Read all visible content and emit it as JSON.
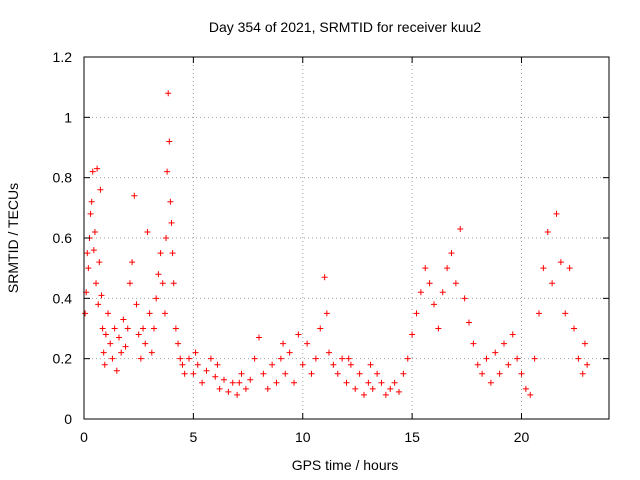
{
  "chart_data": {
    "type": "scatter",
    "title": "Day 354 of 2021, SRMTID for receiver kuu2",
    "xlabel": "GPS time / hours",
    "ylabel": "SRMTID / TECUs",
    "xlim": [
      0,
      24
    ],
    "ylim": [
      0,
      1.2
    ],
    "x_ticks": [
      0,
      5,
      10,
      15,
      20
    ],
    "x_tick_labels": [
      "0",
      "5",
      "10",
      "15",
      "20"
    ],
    "y_ticks": [
      0,
      0.2,
      0.4,
      0.6,
      0.8,
      1.0,
      1.2
    ],
    "y_tick_labels": [
      "0",
      "0.2",
      "0.4",
      "0.6",
      "0.8",
      "1",
      "1.2"
    ],
    "grid": true,
    "marker": "plus",
    "color": "#ff0000",
    "series": [
      {
        "name": "SRMTID",
        "points": [
          [
            0.05,
            0.35
          ],
          [
            0.1,
            0.42
          ],
          [
            0.15,
            0.55
          ],
          [
            0.2,
            0.5
          ],
          [
            0.25,
            0.6
          ],
          [
            0.3,
            0.68
          ],
          [
            0.35,
            0.72
          ],
          [
            0.4,
            0.82
          ],
          [
            0.45,
            0.56
          ],
          [
            0.5,
            0.62
          ],
          [
            0.55,
            0.45
          ],
          [
            0.6,
            0.83
          ],
          [
            0.65,
            0.38
          ],
          [
            0.7,
            0.52
          ],
          [
            0.75,
            0.76
          ],
          [
            0.8,
            0.41
          ],
          [
            0.85,
            0.3
          ],
          [
            0.9,
            0.22
          ],
          [
            0.95,
            0.18
          ],
          [
            1.0,
            0.28
          ],
          [
            1.1,
            0.35
          ],
          [
            1.2,
            0.25
          ],
          [
            1.3,
            0.2
          ],
          [
            1.4,
            0.3
          ],
          [
            1.5,
            0.16
          ],
          [
            1.6,
            0.27
          ],
          [
            1.7,
            0.22
          ],
          [
            1.8,
            0.33
          ],
          [
            1.9,
            0.24
          ],
          [
            2.0,
            0.3
          ],
          [
            2.1,
            0.45
          ],
          [
            2.2,
            0.52
          ],
          [
            2.3,
            0.74
          ],
          [
            2.4,
            0.38
          ],
          [
            2.5,
            0.28
          ],
          [
            2.6,
            0.2
          ],
          [
            2.7,
            0.3
          ],
          [
            2.8,
            0.25
          ],
          [
            2.9,
            0.62
          ],
          [
            3.0,
            0.35
          ],
          [
            3.1,
            0.22
          ],
          [
            3.2,
            0.3
          ],
          [
            3.3,
            0.4
          ],
          [
            3.4,
            0.48
          ],
          [
            3.5,
            0.55
          ],
          [
            3.6,
            0.45
          ],
          [
            3.7,
            0.35
          ],
          [
            3.75,
            0.6
          ],
          [
            3.8,
            0.82
          ],
          [
            3.85,
            1.08
          ],
          [
            3.9,
            0.92
          ],
          [
            3.95,
            0.72
          ],
          [
            4.0,
            0.65
          ],
          [
            4.05,
            0.55
          ],
          [
            4.1,
            0.45
          ],
          [
            4.2,
            0.3
          ],
          [
            4.3,
            0.25
          ],
          [
            4.4,
            0.2
          ],
          [
            4.5,
            0.18
          ],
          [
            4.6,
            0.15
          ],
          [
            4.8,
            0.2
          ],
          [
            5.0,
            0.15
          ],
          [
            5.2,
            0.18
          ],
          [
            5.4,
            0.12
          ],
          [
            5.6,
            0.16
          ],
          [
            5.8,
            0.2
          ],
          [
            6.0,
            0.14
          ],
          [
            6.2,
            0.1
          ],
          [
            6.4,
            0.13
          ],
          [
            6.6,
            0.09
          ],
          [
            6.8,
            0.12
          ],
          [
            7.0,
            0.08
          ],
          [
            7.2,
            0.15
          ],
          [
            7.4,
            0.1
          ],
          [
            7.6,
            0.13
          ],
          [
            7.8,
            0.2
          ],
          [
            8.0,
            0.27
          ],
          [
            8.2,
            0.15
          ],
          [
            8.4,
            0.1
          ],
          [
            8.6,
            0.18
          ],
          [
            8.8,
            0.12
          ],
          [
            9.0,
            0.2
          ],
          [
            9.2,
            0.15
          ],
          [
            9.4,
            0.22
          ],
          [
            9.6,
            0.12
          ],
          [
            9.8,
            0.28
          ],
          [
            10.0,
            0.18
          ],
          [
            10.2,
            0.25
          ],
          [
            10.4,
            0.15
          ],
          [
            10.6,
            0.2
          ],
          [
            10.8,
            0.3
          ],
          [
            11.0,
            0.47
          ],
          [
            11.1,
            0.35
          ],
          [
            11.2,
            0.22
          ],
          [
            11.4,
            0.18
          ],
          [
            11.6,
            0.15
          ],
          [
            11.8,
            0.2
          ],
          [
            12.0,
            0.12
          ],
          [
            12.2,
            0.18
          ],
          [
            12.4,
            0.1
          ],
          [
            12.6,
            0.15
          ],
          [
            12.8,
            0.08
          ],
          [
            13.0,
            0.12
          ],
          [
            13.2,
            0.1
          ],
          [
            13.4,
            0.15
          ],
          [
            13.6,
            0.12
          ],
          [
            13.8,
            0.08
          ],
          [
            14.0,
            0.1
          ],
          [
            14.2,
            0.12
          ],
          [
            14.4,
            0.09
          ],
          [
            14.6,
            0.15
          ],
          [
            14.8,
            0.2
          ],
          [
            15.0,
            0.28
          ],
          [
            15.2,
            0.35
          ],
          [
            15.4,
            0.42
          ],
          [
            15.6,
            0.5
          ],
          [
            15.8,
            0.45
          ],
          [
            16.0,
            0.38
          ],
          [
            16.2,
            0.3
          ],
          [
            16.4,
            0.42
          ],
          [
            16.6,
            0.5
          ],
          [
            16.8,
            0.55
          ],
          [
            17.0,
            0.45
          ],
          [
            17.2,
            0.63
          ],
          [
            17.4,
            0.4
          ],
          [
            17.6,
            0.32
          ],
          [
            17.8,
            0.25
          ],
          [
            18.0,
            0.18
          ],
          [
            18.2,
            0.15
          ],
          [
            18.4,
            0.2
          ],
          [
            18.6,
            0.12
          ],
          [
            18.8,
            0.22
          ],
          [
            19.0,
            0.15
          ],
          [
            19.2,
            0.25
          ],
          [
            19.4,
            0.18
          ],
          [
            19.6,
            0.28
          ],
          [
            19.8,
            0.2
          ],
          [
            20.0,
            0.15
          ],
          [
            20.2,
            0.1
          ],
          [
            20.4,
            0.08
          ],
          [
            20.6,
            0.2
          ],
          [
            20.8,
            0.35
          ],
          [
            21.0,
            0.5
          ],
          [
            21.2,
            0.62
          ],
          [
            21.4,
            0.45
          ],
          [
            21.6,
            0.68
          ],
          [
            21.8,
            0.52
          ],
          [
            22.0,
            0.35
          ],
          [
            22.2,
            0.5
          ],
          [
            22.4,
            0.3
          ],
          [
            22.6,
            0.2
          ],
          [
            22.8,
            0.15
          ],
          [
            22.9,
            0.25
          ],
          [
            23.0,
            0.18
          ],
          [
            5.1,
            0.22
          ],
          [
            6.1,
            0.18
          ],
          [
            7.1,
            0.12
          ],
          [
            9.1,
            0.25
          ],
          [
            12.1,
            0.2
          ],
          [
            13.1,
            0.18
          ]
        ]
      }
    ]
  }
}
